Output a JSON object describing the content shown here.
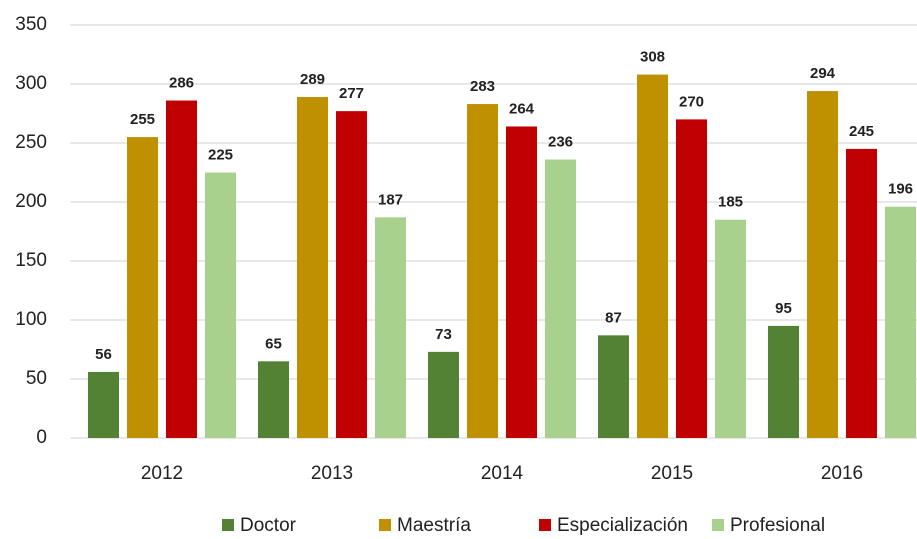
{
  "chart_data": {
    "type": "bar",
    "categories": [
      "2012",
      "2013",
      "2014",
      "2015",
      "2016"
    ],
    "series": [
      {
        "name": "Doctor",
        "color": "#548235",
        "values": [
          56,
          65,
          73,
          87,
          95
        ]
      },
      {
        "name": "Maestría",
        "color": "#bf9000",
        "values": [
          255,
          289,
          283,
          308,
          294
        ]
      },
      {
        "name": "Especialización",
        "color": "#c00000",
        "values": [
          286,
          277,
          264,
          270,
          245
        ]
      },
      {
        "name": "Profesional",
        "color": "#a9d18e",
        "values": [
          225,
          187,
          236,
          185,
          196
        ]
      }
    ],
    "ylim": [
      0,
      350
    ],
    "yticks": [
      0,
      50,
      100,
      150,
      200,
      250,
      300,
      350
    ],
    "grid": true,
    "legend": "bottom"
  }
}
